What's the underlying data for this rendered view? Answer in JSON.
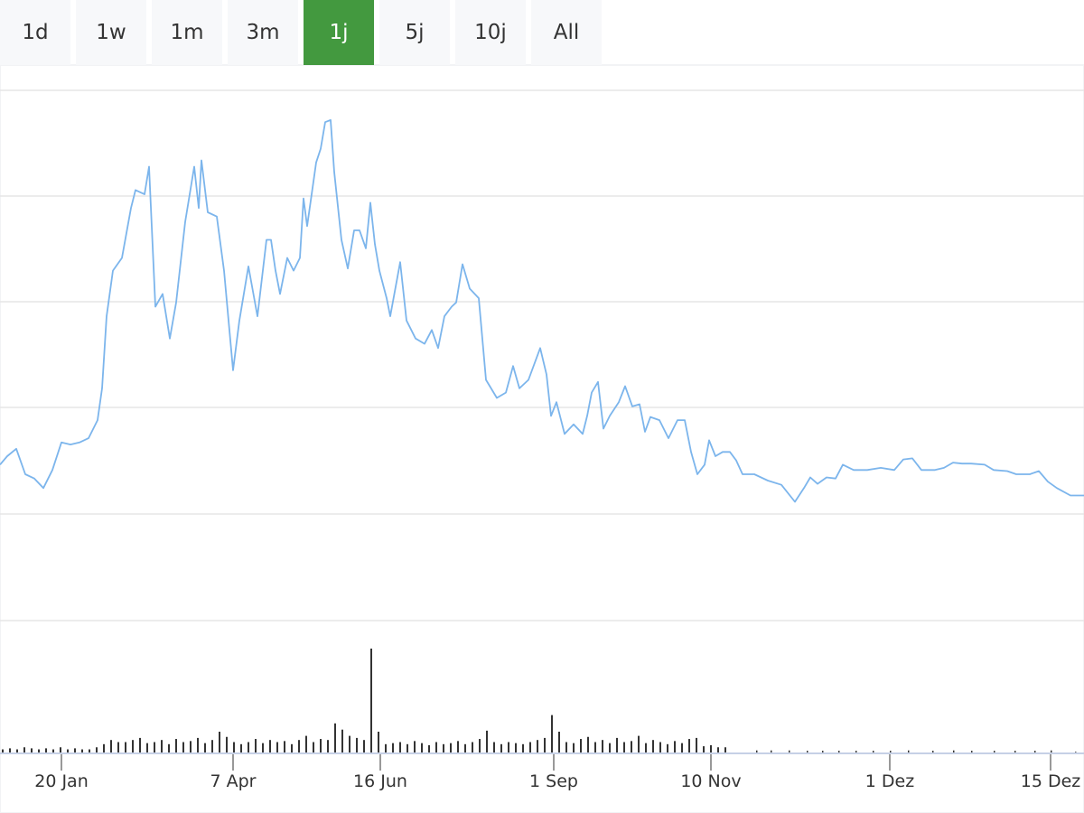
{
  "range_selector": {
    "buttons": [
      {
        "label": "1d",
        "active": false
      },
      {
        "label": "1w",
        "active": false
      },
      {
        "label": "1m",
        "active": false
      },
      {
        "label": "3m",
        "active": false
      },
      {
        "label": "1j",
        "active": true
      },
      {
        "label": "5j",
        "active": false
      },
      {
        "label": "10j",
        "active": false
      },
      {
        "label": "All",
        "active": false
      }
    ],
    "active_color": "#43993f"
  },
  "chart_data": {
    "type": "line",
    "grid": true,
    "line_color": "#7cb5ec",
    "volume_color": "#333333",
    "x_ticks": [
      "20 Jan",
      "7 Apr",
      "16 Jun",
      "1 Sep",
      "10 Nov",
      "1 Dez",
      "15 Dez"
    ],
    "price_relative": [
      1.47,
      1.55,
      1.62,
      1.38,
      1.34,
      1.25,
      1.42,
      1.68,
      1.66,
      1.68,
      1.72,
      1.89,
      2.19,
      2.87,
      3.3,
      3.42,
      3.89,
      4.06,
      4.02,
      4.28,
      2.96,
      3.08,
      2.66,
      3.0,
      3.76,
      4.28,
      3.89,
      4.34,
      3.85,
      3.81,
      3.3,
      2.36,
      2.83,
      3.34,
      2.87,
      3.59,
      3.59,
      3.3,
      3.08,
      3.42,
      3.3,
      3.42,
      3.98,
      3.72,
      4.02,
      4.32,
      4.45,
      4.7,
      4.72,
      4.23,
      3.59,
      3.32,
      3.68,
      3.68,
      3.51,
      3.94,
      3.55,
      3.3,
      3.04,
      2.87,
      3.38,
      2.83,
      2.66,
      2.61,
      2.74,
      2.57,
      2.87,
      2.96,
      3.0,
      3.36,
      3.13,
      3.04,
      2.27,
      2.1,
      2.15,
      2.4,
      2.19,
      2.27,
      2.57,
      2.32,
      1.93,
      2.06,
      1.76,
      1.85,
      1.76,
      1.93,
      2.15,
      2.25,
      1.81,
      1.93,
      2.06,
      2.21,
      2.02,
      2.04,
      1.78,
      1.92,
      1.89,
      1.72,
      1.89,
      1.89,
      1.59,
      1.38,
      1.47,
      1.7,
      1.55,
      1.59,
      1.59,
      1.51,
      1.38,
      1.38,
      1.32,
      1.28,
      1.12,
      1.25,
      1.35,
      1.29,
      1.35,
      1.34,
      1.47,
      1.42,
      1.42,
      1.44,
      1.42,
      1.52,
      1.53,
      1.42,
      1.42,
      1.44,
      1.49,
      1.48,
      1.48,
      1.47,
      1.42,
      1.41,
      1.38,
      1.38,
      1.41,
      1.31,
      1.25,
      1.18,
      1.18
    ],
    "volume_relative": [
      0.03,
      0.04,
      0.03,
      0.05,
      0.04,
      0.03,
      0.04,
      0.03,
      0.05,
      0.03,
      0.04,
      0.03,
      0.03,
      0.05,
      0.08,
      0.12,
      0.1,
      0.1,
      0.12,
      0.14,
      0.09,
      0.1,
      0.12,
      0.08,
      0.13,
      0.1,
      0.11,
      0.14,
      0.09,
      0.12,
      0.2,
      0.15,
      0.1,
      0.08,
      0.1,
      0.13,
      0.09,
      0.12,
      0.1,
      0.11,
      0.08,
      0.12,
      0.16,
      0.1,
      0.13,
      0.12,
      0.28,
      0.22,
      0.16,
      0.14,
      0.12,
      1.0,
      0.2,
      0.08,
      0.09,
      0.1,
      0.08,
      0.11,
      0.09,
      0.07,
      0.1,
      0.08,
      0.09,
      0.11,
      0.08,
      0.1,
      0.13,
      0.21,
      0.1,
      0.08,
      0.1,
      0.09,
      0.08,
      0.1,
      0.12,
      0.14,
      0.36,
      0.2,
      0.1,
      0.09,
      0.13,
      0.15,
      0.1,
      0.12,
      0.09,
      0.14,
      0.1,
      0.11,
      0.16,
      0.09,
      0.12,
      0.1,
      0.08,
      0.11,
      0.09,
      0.13,
      0.14,
      0.06,
      0.07,
      0.05,
      0.05
    ],
    "volume_sparse_relative": [
      0.06,
      0.06,
      0.06,
      0.05,
      0.05,
      0.05,
      0.05,
      0.05,
      0.05,
      0.06,
      0.05,
      0.06,
      0.05,
      0.05,
      0.05,
      0.05,
      0.06,
      0.02
    ]
  }
}
